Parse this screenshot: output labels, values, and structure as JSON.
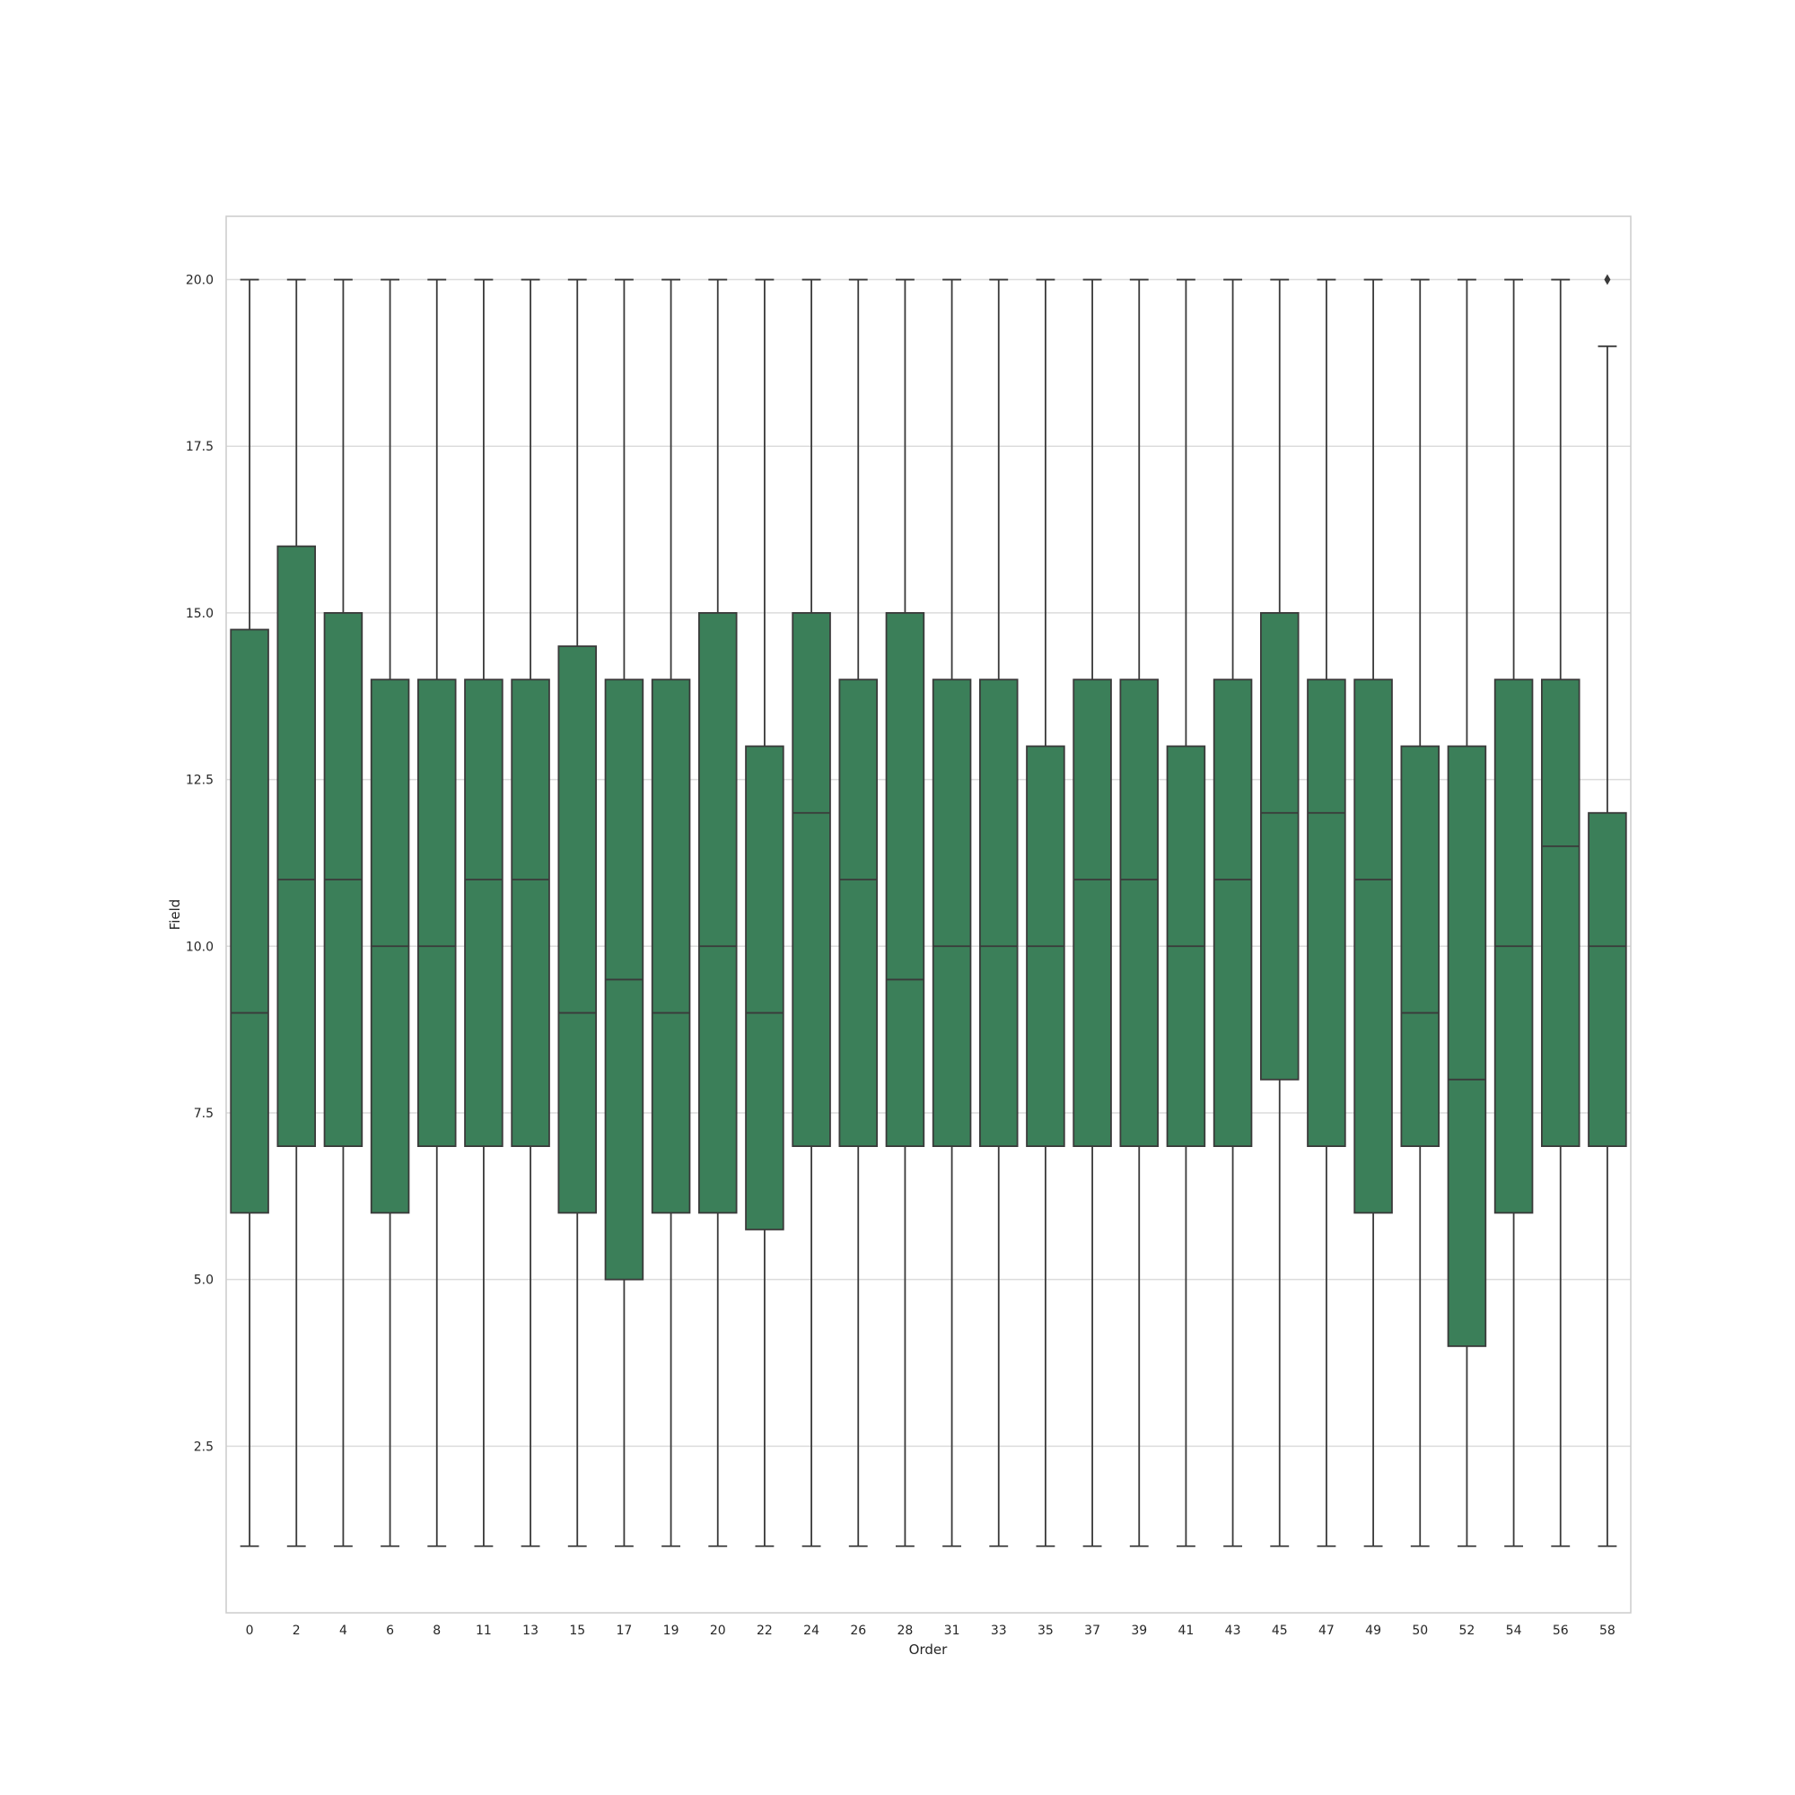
{
  "chart_data": {
    "type": "box",
    "xlabel": "Order",
    "ylabel": "Field",
    "ylim": [
      0.0,
      20.95
    ],
    "y_ticks": [
      2.5,
      5.0,
      7.5,
      10.0,
      12.5,
      15.0,
      17.5,
      20.0
    ],
    "y_tick_labels": [
      "2.5",
      "5.0",
      "7.5",
      "10.0",
      "12.5",
      "15.0",
      "17.5",
      "20.0"
    ],
    "grid": "horizontal",
    "box_color": "#3b7f59",
    "line_color": "#3a3a3a",
    "categories": [
      "0",
      "2",
      "4",
      "6",
      "8",
      "11",
      "13",
      "15",
      "17",
      "19",
      "20",
      "22",
      "24",
      "26",
      "28",
      "31",
      "33",
      "35",
      "37",
      "39",
      "41",
      "43",
      "45",
      "47",
      "49",
      "50",
      "52",
      "54",
      "56",
      "58"
    ],
    "boxes": [
      {
        "whisker_low": 1,
        "q1": 6,
        "median": 9,
        "q3": 14.75,
        "whisker_high": 20
      },
      {
        "whisker_low": 1,
        "q1": 7,
        "median": 11,
        "q3": 16,
        "whisker_high": 20
      },
      {
        "whisker_low": 1,
        "q1": 7,
        "median": 11,
        "q3": 15,
        "whisker_high": 20
      },
      {
        "whisker_low": 1,
        "q1": 6,
        "median": 10,
        "q3": 14,
        "whisker_high": 20
      },
      {
        "whisker_low": 1,
        "q1": 7,
        "median": 10,
        "q3": 14,
        "whisker_high": 20
      },
      {
        "whisker_low": 1,
        "q1": 7,
        "median": 11,
        "q3": 14,
        "whisker_high": 20
      },
      {
        "whisker_low": 1,
        "q1": 7,
        "median": 11,
        "q3": 14,
        "whisker_high": 20
      },
      {
        "whisker_low": 1,
        "q1": 6,
        "median": 9,
        "q3": 14.5,
        "whisker_high": 20
      },
      {
        "whisker_low": 1,
        "q1": 5,
        "median": 9.5,
        "q3": 14,
        "whisker_high": 20
      },
      {
        "whisker_low": 1,
        "q1": 6,
        "median": 9,
        "q3": 14,
        "whisker_high": 20
      },
      {
        "whisker_low": 1,
        "q1": 6,
        "median": 10,
        "q3": 15,
        "whisker_high": 20
      },
      {
        "whisker_low": 1,
        "q1": 5.75,
        "median": 9,
        "q3": 13,
        "whisker_high": 20
      },
      {
        "whisker_low": 1,
        "q1": 7,
        "median": 12,
        "q3": 15,
        "whisker_high": 20
      },
      {
        "whisker_low": 1,
        "q1": 7,
        "median": 11,
        "q3": 14,
        "whisker_high": 20
      },
      {
        "whisker_low": 1,
        "q1": 7,
        "median": 9.5,
        "q3": 15,
        "whisker_high": 20
      },
      {
        "whisker_low": 1,
        "q1": 7,
        "median": 10,
        "q3": 14,
        "whisker_high": 20
      },
      {
        "whisker_low": 1,
        "q1": 7,
        "median": 10,
        "q3": 14,
        "whisker_high": 20
      },
      {
        "whisker_low": 1,
        "q1": 7,
        "median": 10,
        "q3": 13,
        "whisker_high": 20
      },
      {
        "whisker_low": 1,
        "q1": 7,
        "median": 11,
        "q3": 14,
        "whisker_high": 20
      },
      {
        "whisker_low": 1,
        "q1": 7,
        "median": 11,
        "q3": 14,
        "whisker_high": 20
      },
      {
        "whisker_low": 1,
        "q1": 7,
        "median": 10,
        "q3": 13,
        "whisker_high": 20
      },
      {
        "whisker_low": 1,
        "q1": 7,
        "median": 11,
        "q3": 14,
        "whisker_high": 20
      },
      {
        "whisker_low": 1,
        "q1": 8,
        "median": 12,
        "q3": 15,
        "whisker_high": 20
      },
      {
        "whisker_low": 1,
        "q1": 7,
        "median": 12,
        "q3": 14,
        "whisker_high": 20
      },
      {
        "whisker_low": 1,
        "q1": 6,
        "median": 11,
        "q3": 14,
        "whisker_high": 20
      },
      {
        "whisker_low": 1,
        "q1": 7,
        "median": 9,
        "q3": 13,
        "whisker_high": 20
      },
      {
        "whisker_low": 1,
        "q1": 4,
        "median": 8,
        "q3": 13,
        "whisker_high": 20
      },
      {
        "whisker_low": 1,
        "q1": 6,
        "median": 10,
        "q3": 14,
        "whisker_high": 20
      },
      {
        "whisker_low": 1,
        "q1": 7,
        "median": 11.5,
        "q3": 14,
        "whisker_high": 20
      },
      {
        "whisker_low": 1,
        "q1": 7,
        "median": 10,
        "q3": 12,
        "whisker_high": 19,
        "outliers": [
          20
        ]
      }
    ]
  }
}
